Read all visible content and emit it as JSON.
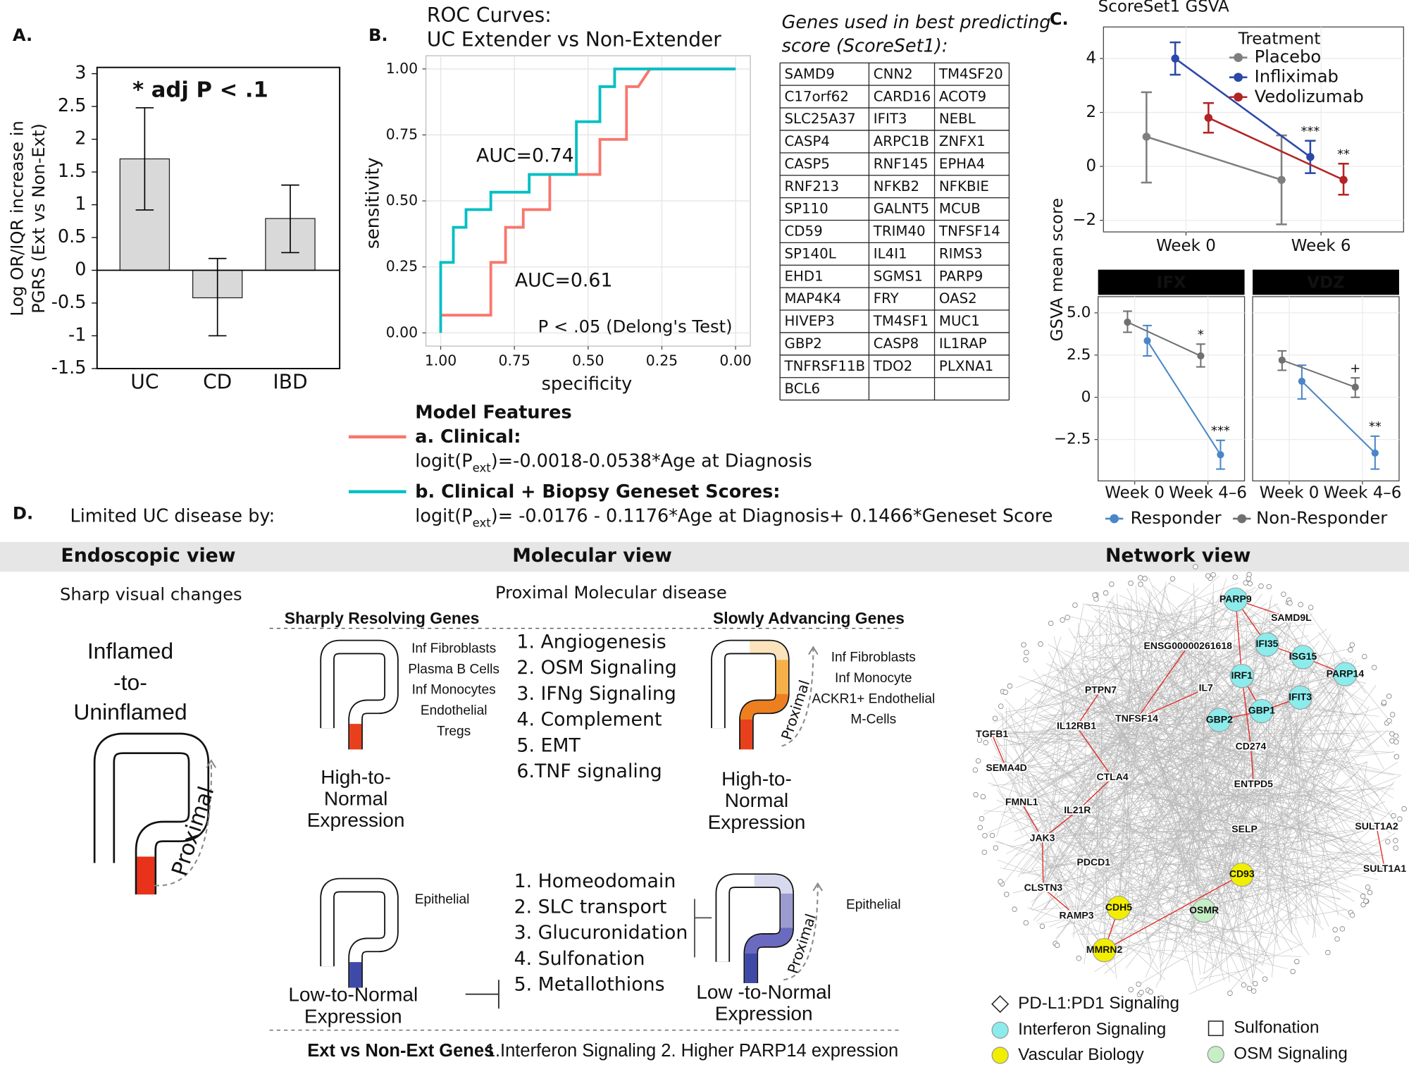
{
  "panel_labels": [
    "A.",
    "B.",
    "C.",
    "D."
  ],
  "chart_data": [
    {
      "type": "bar",
      "ylabel": [
        "Log OR/IQR increase in",
        "PGRS (Ext vs Non-Ext)"
      ],
      "annotation": "* adj P < .1",
      "categories": [
        "UC",
        "CD",
        "IBD"
      ],
      "values": [
        1.7,
        -0.42,
        0.79
      ],
      "ci": [
        [
          0.92,
          2.48
        ],
        [
          -1,
          0.18
        ],
        [
          0.27,
          1.3
        ]
      ],
      "color": "#d9d9d9",
      "ylim": [
        -1.5,
        3
      ],
      "yticks": [
        -1.5,
        -1,
        -0.5,
        0,
        0.5,
        1,
        1.5,
        2,
        2.5,
        3
      ]
    },
    {
      "type": "step",
      "title": [
        "ROC Curves:",
        "UC Extender vs Non-Extender"
      ],
      "xlabel": "specificity",
      "ylabel": "sensitivity",
      "xlim": [
        1.05,
        -0.05
      ],
      "ylim": [
        -0.05,
        1.05
      ],
      "xticks": [
        {
          "value": 1,
          "label": "1.00"
        },
        0.75,
        {
          "value": 0.5,
          "label": "0.50"
        },
        0.25,
        {
          "value": 0,
          "label": "0.00"
        }
      ],
      "yticks": [
        {
          "value": 0,
          "label": "0.00"
        },
        0.25,
        {
          "value": 0.5,
          "label": "0.50"
        },
        0.75,
        {
          "value": 1,
          "label": "1.00"
        }
      ],
      "grid": true,
      "annotation": "P < .05 (Delong's Test)",
      "legend_title": "Model Features",
      "series": [
        {
          "name": "a. Clinical:",
          "color": "#f8766d",
          "label": "AUC=0.61",
          "formula": [
            "logit(P",
            "ext",
            ")=-0.0018-0.0538*Age at Diagnosis"
          ],
          "x": [
            1,
            0.83,
            0.83,
            0.78,
            0.78,
            0.72,
            0.72,
            0.63,
            0.63,
            0.46,
            0.46,
            0.37,
            0.37,
            0.33,
            0.29,
            0
          ],
          "values": [
            0.067,
            0.067,
            0.267,
            0.267,
            0.4,
            0.4,
            0.467,
            0.467,
            0.6,
            0.6,
            0.733,
            0.733,
            0.933,
            0.933,
            1,
            1
          ]
        },
        {
          "name": "b. Clinical + Biopsy Geneset Scores:",
          "color": "#00bfc4",
          "label": "AUC=0.74",
          "formula": [
            "logit(P",
            "ext",
            ")= -0.0176  - 0.1176*Age at Diagnosis+ 0.1466*Geneset Score"
          ],
          "x": [
            1,
            1,
            0.957,
            0.957,
            0.914,
            0.914,
            0.83,
            0.83,
            0.7,
            0.7,
            0.54,
            0.54,
            0.46,
            0.46,
            0.41,
            0.41,
            0
          ],
          "values": [
            0,
            0.267,
            0.267,
            0.4,
            0.4,
            0.467,
            0.467,
            0.533,
            0.533,
            0.6,
            0.6,
            0.8,
            0.8,
            0.933,
            0.933,
            1,
            1
          ]
        }
      ]
    },
    {
      "type": "line",
      "title": "ScoreSet1 GSVA",
      "ylabel": "GSVA mean score",
      "categories": [
        "Week 0",
        "Week 6"
      ],
      "legend_title": "Treatment",
      "ylim": [
        -2.43,
        5.17
      ],
      "yticks": [
        {
          "value": -2,
          "label": "−2"
        },
        0,
        2,
        4
      ],
      "grid": true,
      "series": [
        {
          "name": "Placebo",
          "color": "#7f7f7f",
          "values": [
            1.1,
            -0.5
          ],
          "ci": [
            [
              -0.6,
              2.75
            ],
            [
              -2.15,
              1.15
            ]
          ]
        },
        {
          "name": "Infliximab",
          "color": "#2b48a8",
          "values": [
            4,
            0.35
          ],
          "ci": [
            [
              3.4,
              4.6
            ],
            [
              -0.25,
              0.95
            ]
          ],
          "sig_labels": [
            null,
            "***"
          ]
        },
        {
          "name": "Vedolizumab",
          "color": "#b22426",
          "values": [
            1.8,
            -0.5
          ],
          "ci": [
            [
              1.25,
              2.35
            ],
            [
              -1.05,
              0.1
            ]
          ],
          "sig_labels": [
            null,
            "**"
          ]
        }
      ]
    },
    {
      "type": "line",
      "categories": [
        "Week 0",
        "Week 4–6"
      ],
      "ylim": [
        -4.95,
        5.96
      ],
      "yticks": [
        {
          "value": -2.5,
          "label": "−2.5"
        },
        0,
        2.5,
        {
          "value": 5,
          "label": "5.0"
        }
      ],
      "grid": true,
      "legend": [
        {
          "name": "Responder",
          "color": "#4a86c8"
        },
        {
          "name": "Non-Responder",
          "color": "#707070"
        }
      ],
      "facets": [
        {
          "title": "IFX",
          "series": [
            {
              "values": [
                3.35,
                -3.4
              ],
              "ci": [
                [
                  2.45,
                  4.25
                ],
                [
                  -4.25,
                  -2.55
                ]
              ],
              "sig_labels": [
                null,
                "***"
              ]
            },
            {
              "values": [
                4.45,
                2.45
              ],
              "ci": [
                [
                  3.85,
                  5.1
                ],
                [
                  1.8,
                  3.15
                ]
              ],
              "sig_labels": [
                null,
                "*"
              ]
            }
          ]
        },
        {
          "title": "VDZ",
          "series": [
            {
              "values": [
                0.95,
                -3.3
              ],
              "ci": [
                [
                  -0.1,
                  1.9
                ],
                [
                  -4.25,
                  -2.3
                ]
              ],
              "sig_labels": [
                null,
                "**"
              ]
            },
            {
              "values": [
                2.2,
                0.6
              ],
              "ci": [
                [
                  1.6,
                  2.75
                ],
                [
                  0,
                  1.15
                ]
              ],
              "sig_labels": [
                null,
                "+"
              ]
            }
          ]
        }
      ]
    }
  ],
  "gene_table": {
    "title": [
      "Genes used in best predicting",
      "score (ScoreSet1):"
    ],
    "rows": [
      [
        "SAMD9",
        "CNN2",
        "TM4SF20"
      ],
      [
        "C17orf62",
        "CARD16",
        "ACOT9"
      ],
      [
        "SLC25A37",
        "IFIT3",
        "NEBL"
      ],
      [
        "CASP4",
        "ARPC1B",
        "ZNFX1"
      ],
      [
        "CASP5",
        "RNF145",
        "EPHA4"
      ],
      [
        "RNF213",
        "NFKB2",
        "NFKBIE"
      ],
      [
        "SP110",
        "GALNT5",
        "MCUB"
      ],
      [
        "CD59",
        "TRIM40",
        "TNFSF14"
      ],
      [
        "SP140L",
        "IL4I1",
        "RIMS3"
      ],
      [
        "EHD1",
        "SGMS1",
        "PARP9"
      ],
      [
        "MAP4K4",
        "FRY",
        "OAS2"
      ],
      [
        "HIVEP3",
        "TM4SF1",
        "MUC1"
      ],
      [
        "GBP2",
        "CASP8",
        "IL1RAP"
      ],
      [
        "TNFRSF11B",
        "TDO2",
        "PLXNA1"
      ],
      [
        "BCL6"
      ]
    ]
  },
  "panel_d": {
    "intro": "Limited UC disease by:",
    "views": [
      "Endoscopic view",
      "Molecular view",
      "Network view"
    ],
    "endoscopic": {
      "caption": "Sharp visual changes",
      "state": [
        "Inflamed",
        "-to-",
        "Uninflamed"
      ],
      "arrow_label": "Proximal"
    },
    "molecular": {
      "caption": "Proximal Molecular disease",
      "groups": [
        "Sharply Resolving  Genes",
        "Slowly Advancing Genes"
      ],
      "high_cells_sharp": [
        "Inf Fibroblasts",
        "Plasma B Cells",
        "Inf Monocytes",
        "Endothelial",
        "Tregs"
      ],
      "high_cells_slow": [
        "Inf Fibroblasts",
        "Inf Monocyte",
        "ACKR1+ Endothelial",
        "M-Cells"
      ],
      "high_expression": [
        "High-to-",
        "Normal",
        "Expression"
      ],
      "high_pathways": [
        "1. Angiogenesis",
        "2. OSM Signaling",
        "3. IFNg Signaling",
        "4. Complement",
        "5. EMT",
        "6.TNF signaling"
      ],
      "low_cells": "Epithelial",
      "low_expression_sharp": [
        "Low-to-Normal",
        "Expression"
      ],
      "low_expression_slow": [
        "Low -to-Normal",
        "Expression"
      ],
      "low_pathways": [
        "1. Homeodomain",
        "2. SLC transport",
        "3. Glucuronidation",
        "4. Sulfonation",
        "5. Metallothions"
      ],
      "footer_title": "Ext vs Non-Ext Genes",
      "footer_text": "1.Interferon Signaling 2. Higher PARP14  expression"
    },
    "network": {
      "nodes": [
        {
          "label": "PARP9",
          "color": "#8cecec"
        },
        {
          "label": "SAMD9L",
          "color": "#ffffff"
        },
        {
          "label": "IFI35",
          "color": "#8cecec"
        },
        {
          "label": "ISG15",
          "color": "#8cecec"
        },
        {
          "label": "PARP14",
          "color": "#8cecec"
        },
        {
          "label": "ENSG00000261618",
          "color": "#ffffff"
        },
        {
          "label": "IRF1",
          "color": "#8cecec"
        },
        {
          "label": "IFIT3",
          "color": "#8cecec"
        },
        {
          "label": "IL7",
          "color": "#ffffff"
        },
        {
          "label": "GBP1",
          "color": "#8cecec"
        },
        {
          "label": "GBP2",
          "color": "#8cecec"
        },
        {
          "label": "PTPN7",
          "color": "#ffffff"
        },
        {
          "label": "TNFSF14",
          "color": "#ffffff"
        },
        {
          "label": "IL12RB1",
          "color": "#ffffff"
        },
        {
          "label": "CD274",
          "color": "#ffffff"
        },
        {
          "label": "TGFB1",
          "color": "#ffffff"
        },
        {
          "label": "CTLA4",
          "color": "#ffffff"
        },
        {
          "label": "ENTPD5",
          "color": "#ffffff"
        },
        {
          "label": "SEMA4D",
          "color": "#ffffff"
        },
        {
          "label": "FMNL1",
          "color": "#ffffff"
        },
        {
          "label": "IL21R",
          "color": "#ffffff"
        },
        {
          "label": "SELP",
          "color": "#ffffff"
        },
        {
          "label": "SULT1A2",
          "color": "#ffffff"
        },
        {
          "label": "JAK3",
          "color": "#ffffff"
        },
        {
          "label": "PDCD1",
          "color": "#ffffff"
        },
        {
          "label": "SULT1A1",
          "color": "#ffffff"
        },
        {
          "label": "CD93",
          "color": "#f2ee00"
        },
        {
          "label": "CLSTN3",
          "color": "#ffffff"
        },
        {
          "label": "CDH5",
          "color": "#f2ee00"
        },
        {
          "label": "OSMR",
          "color": "#c6efc6"
        },
        {
          "label": "RAMP3",
          "color": "#ffffff"
        },
        {
          "label": "MMRN2",
          "color": "#f2ee00"
        }
      ],
      "legend": [
        {
          "label": "PD-L1:PD1 Signaling",
          "shape": "diamond",
          "color": "#ffffff"
        },
        {
          "label": "Interferon Signaling",
          "shape": "circle",
          "color": "#8cecec"
        },
        {
          "label": "Sulfonation",
          "shape": "square",
          "color": "#ffffff"
        },
        {
          "label": "Vascular Biology",
          "shape": "circle",
          "color": "#f2ee00"
        },
        {
          "label": "OSM Signaling",
          "shape": "circle",
          "color": "#c6efc6"
        }
      ]
    }
  }
}
